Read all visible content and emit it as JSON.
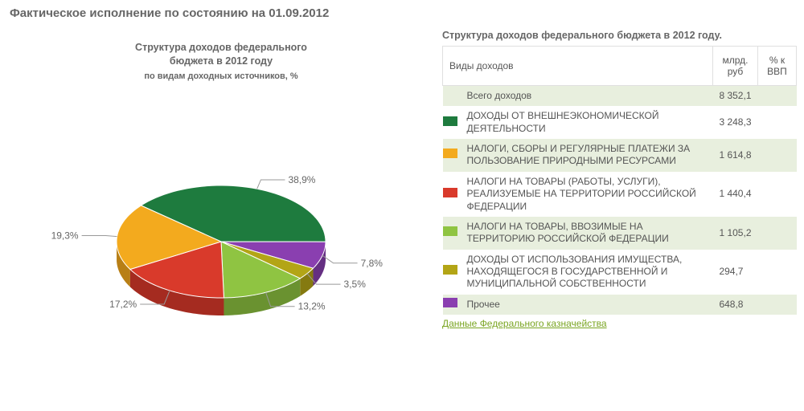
{
  "page_title": "Фактическое исполнение по состоянию на 01.09.2012",
  "chart": {
    "type": "pie",
    "title_line1": "Структура доходов федерального",
    "title_line2": "бюджета в 2012 году",
    "subtitle": "по видам доходных источников, %",
    "background_color": "#ffffff",
    "label_fontsize": 12,
    "label_color": "#666666",
    "slices": [
      {
        "label": "38,9%",
        "value": 38.9,
        "color_top": "#1e7b3e",
        "color_side": "#155a2d"
      },
      {
        "label": "7,8%",
        "value": 7.8,
        "color_top": "#8a3fb0",
        "color_side": "#652f82"
      },
      {
        "label": "3,5%",
        "value": 3.5,
        "color_top": "#b3a516",
        "color_side": "#857a10"
      },
      {
        "label": "13,2%",
        "value": 13.2,
        "color_top": "#8fc442",
        "color_side": "#6a9230"
      },
      {
        "label": "17,2%",
        "value": 17.2,
        "color_top": "#d93a2b",
        "color_side": "#a52b20"
      },
      {
        "label": "19,3%",
        "value": 19.3,
        "color_top": "#f3aa1e",
        "color_side": "#b87f15"
      }
    ]
  },
  "table": {
    "title": "Структура доходов федерального бюджета в 2012 году.",
    "col_type": "Виды доходов",
    "col_value": "млрд. руб",
    "col_gdp": "% к ВВП",
    "rows": [
      {
        "swatch": null,
        "label": "Всего доходов",
        "value": "8 352,1",
        "gdp": ""
      },
      {
        "swatch": "#1e7b3e",
        "label": "ДОХОДЫ ОТ ВНЕШНЕЭКОНОМИЧЕСКОЙ ДЕЯТЕЛЬНОСТИ",
        "value": "3 248,3",
        "gdp": ""
      },
      {
        "swatch": "#f3aa1e",
        "label": "НАЛОГИ, СБОРЫ И РЕГУЛЯРНЫЕ ПЛАТЕЖИ ЗА ПОЛЬЗОВАНИЕ ПРИРОДНЫМИ РЕСУРСАМИ",
        "value": "1 614,8",
        "gdp": ""
      },
      {
        "swatch": "#d93a2b",
        "label": "НАЛОГИ НА ТОВАРЫ (РАБОТЫ, УСЛУГИ), РЕАЛИЗУЕМЫЕ НА ТЕРРИТОРИИ РОССИЙСКОЙ ФЕДЕРАЦИИ",
        "value": "1 440,4",
        "gdp": ""
      },
      {
        "swatch": "#8fc442",
        "label": "НАЛОГИ НА ТОВАРЫ, ВВОЗИМЫЕ НА ТЕРРИТОРИЮ РОССИЙСКОЙ ФЕДЕРАЦИИ",
        "value": "1 105,2",
        "gdp": ""
      },
      {
        "swatch": "#b3a516",
        "label": "ДОХОДЫ ОТ ИСПОЛЬЗОВАНИЯ ИМУЩЕСТВА, НАХОДЯЩЕГОСЯ В ГОСУДАРСТВЕННОЙ И МУНИЦИПАЛЬНОЙ СОБСТВЕННОСТИ",
        "value": "294,7",
        "gdp": ""
      },
      {
        "swatch": "#8a3fb0",
        "label": "Прочее",
        "value": "648,8",
        "gdp": ""
      }
    ],
    "source_link": "Данные Федерального казначейства"
  }
}
